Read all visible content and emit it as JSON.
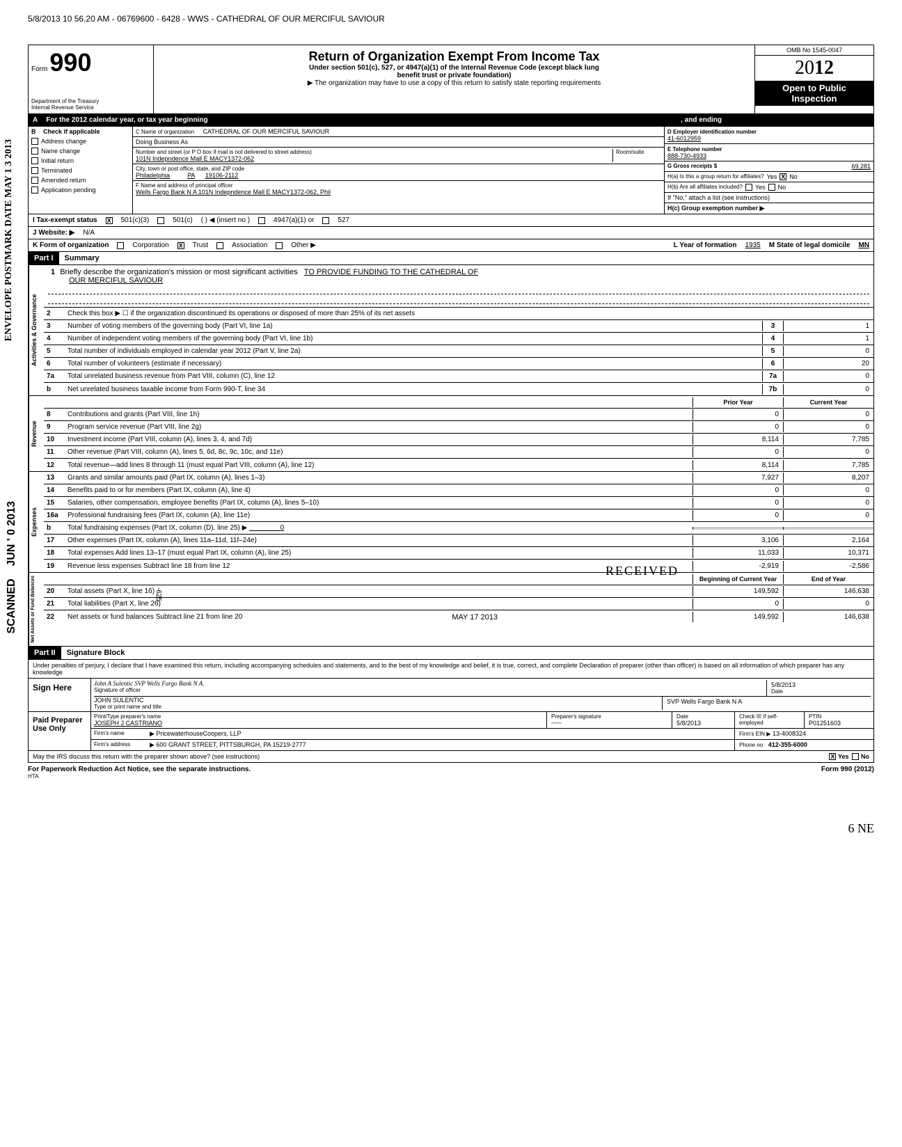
{
  "header": {
    "timestamp_line": "5/8/2013 10 56.20 AM - 06769600 - 6428 - WWS - CATHEDRAL OF OUR MERCIFUL SAVIOUR"
  },
  "form": {
    "form_label": "Form",
    "form_number": "990",
    "dept1": "Department of the Treasury",
    "dept2": "Internal Revenue Service",
    "title": "Return of Organization Exempt From Income Tax",
    "subtitle1": "Under section 501(c), 527, or 4947(a)(1) of the Internal Revenue Code (except black lung",
    "subtitle2": "benefit trust or private foundation)",
    "subtitle3": "▶ The organization may have to use a copy of this return to satisfy state reporting requirements",
    "omb": "OMB No 1545-0047",
    "year": "2012",
    "open": "Open to Public",
    "inspection": "Inspection"
  },
  "row_a": "For the 2012 calendar year, or tax year beginning",
  "row_a_end": ", and ending",
  "col_b": {
    "header": "Check if applicable",
    "items": [
      "Address change",
      "Name change",
      "Initial return",
      "Terminated",
      "Amended return",
      "Application pending"
    ]
  },
  "col_c": {
    "name_label": "C  Name of organization",
    "name": "CATHEDRAL OF OUR MERCIFUL SAVIOUR",
    "dba_label": "Doing Business As",
    "addr_label": "Number and street (or P O  box if mail is not delivered to street address)",
    "room_label": "Room/suite",
    "addr": "101N Indepndence Mall E MACY1372-062",
    "city_label": "City, town or post office, state, and ZIP code",
    "city": "Philadelphia",
    "state": "PA",
    "zip": "19106-2112",
    "f_label": "F  Name and address of principal officer",
    "f_value": "Wells Fargo Bank N A  101N Indepndence Mall E MACY1372-062, Phil"
  },
  "col_d": {
    "d_label": "D  Employer identification number",
    "d_value": "41-6012959",
    "e_label": "E  Telephone number",
    "e_value": "888-730-4933",
    "g_label": "G  Gross receipts $",
    "g_value": "69,281",
    "ha_label": "H(a) Is this a group return for affiliates?",
    "ha_yes": "Yes",
    "ha_no": "No",
    "hb_label": "H(b) Are all affiliates included?",
    "hb_note": "If \"No,\" attach a list  (see instructions)",
    "hc_label": "H(c) Group exemption number ▶"
  },
  "row_i": {
    "label": "I    Tax-exempt status",
    "opt1": "501(c)(3)",
    "opt2": "501(c)",
    "opt2_paren": "(          )  ◀ (insert no )",
    "opt3": "4947(a)(1) or",
    "opt4": "527"
  },
  "row_j": {
    "label": "J   Website: ▶",
    "value": "N/A"
  },
  "row_k": {
    "label": "K  Form of organization",
    "opts": [
      "Corporation",
      "Trust",
      "Association",
      "Other ▶"
    ],
    "l_label": "L Year of formation",
    "l_value": "1935",
    "m_label": "M State of legal domicile",
    "m_value": "MN"
  },
  "part1": {
    "header": "Part I",
    "title": "Summary"
  },
  "governance": {
    "label": "Activities & Governance",
    "line1_desc": "Briefly describe the organization's mission or most significant activities",
    "line1_val": "TO PROVIDE FUNDING TO THE CATHEDRAL OF",
    "line1_val2": "OUR MERCIFUL SAVIOUR",
    "line2_desc": "Check this box  ▶ ☐  if the organization discontinued its operations or disposed of more than 25% of its net assets",
    "lines": [
      {
        "n": "3",
        "desc": "Number of voting members of the governing body (Part VI, line 1a)",
        "box": "3",
        "val": "1"
      },
      {
        "n": "4",
        "desc": "Number of independent voting members of the governing body (Part VI, line 1b)",
        "box": "4",
        "val": "1"
      },
      {
        "n": "5",
        "desc": "Total number of individuals employed in calendar year 2012 (Part V, line 2a)",
        "box": "5",
        "val": "0"
      },
      {
        "n": "6",
        "desc": "Total number of volunteers (estimate if necessary)",
        "box": "6",
        "val": "20"
      },
      {
        "n": "7a",
        "desc": "Total unrelated business revenue from Part VIII, column (C), line 12",
        "box": "7a",
        "val": "0"
      },
      {
        "n": "b",
        "desc": "Net unrelated business taxable income from Form 990-T, line 34",
        "box": "7b",
        "val": "0"
      }
    ]
  },
  "revenue": {
    "label": "Revenue",
    "col1": "Prior Year",
    "col2": "Current Year",
    "lines": [
      {
        "n": "8",
        "desc": "Contributions and grants (Part VIII, line 1h)",
        "v1": "0",
        "v2": "0"
      },
      {
        "n": "9",
        "desc": "Program service revenue (Part VIII, line 2g)",
        "v1": "0",
        "v2": "0"
      },
      {
        "n": "10",
        "desc": "Investment income (Part VIII, column (A), lines 3, 4, and 7d)",
        "v1": "8,114",
        "v2": "7,785"
      },
      {
        "n": "11",
        "desc": "Other revenue (Part VIII, column (A), lines 5, 6d, 8c, 9c, 10c, and 11e)",
        "v1": "0",
        "v2": "0"
      },
      {
        "n": "12",
        "desc": "Total revenue—add lines 8 through 11 (must equal Part VIII, column (A), line 12)",
        "v1": "8,114",
        "v2": "7,785"
      }
    ]
  },
  "expenses": {
    "label": "Expenses",
    "lines": [
      {
        "n": "13",
        "desc": "Grants and similar amounts paid (Part IX, column (A), lines 1–3)",
        "v1": "7,927",
        "v2": "8,207"
      },
      {
        "n": "14",
        "desc": "Benefits paid to or for members (Part IX, column (A), line 4)",
        "v1": "0",
        "v2": "0"
      },
      {
        "n": "15",
        "desc": "Salaries, other compensation, employee benefits (Part IX, column (A), lines 5–10)",
        "v1": "0",
        "v2": "0"
      },
      {
        "n": "16a",
        "desc": "Professional fundraising fees (Part IX, column (A), line 11e)",
        "v1": "0",
        "v2": "0"
      },
      {
        "n": "b",
        "desc": "Total fundraising expenses (Part IX, column (D), line 25) ▶",
        "v1": "",
        "v2": ""
      },
      {
        "n": "17",
        "desc": "Other expenses (Part IX, column (A), lines 11a–11d, 11f–24e)",
        "v1": "3,106",
        "v2": "2,164"
      },
      {
        "n": "18",
        "desc": "Total expenses  Add lines 13–17 (must equal Part IX, column (A), line 25)",
        "v1": "11,033",
        "v2": "10,371"
      },
      {
        "n": "19",
        "desc": "Revenue less expenses  Subtract line 18 from line 12",
        "v1": "-2,919",
        "v2": "-2,586"
      }
    ],
    "line_b_zero": "0"
  },
  "netassets": {
    "label": "Net Assets or Fund Balances",
    "col1": "Beginning of Current Year",
    "col2": "End of Year",
    "lines": [
      {
        "n": "20",
        "desc": "Total assets (Part X, line 16)",
        "v1": "149,592",
        "v2": "146,638"
      },
      {
        "n": "21",
        "desc": "Total liabilities (Part X, line 26)",
        "v1": "0",
        "v2": "0"
      },
      {
        "n": "22",
        "desc": "Net assets or fund balances  Subtract line 21 from line 20",
        "v1": "149,592",
        "v2": "146,638"
      }
    ]
  },
  "received_stamp": "RECEIVED",
  "received_date": "MAY 17 2013",
  "received_num": "-625",
  "part2": {
    "header": "Part II",
    "title": "Signature Block"
  },
  "perjury": "Under penalties of perjury, I declare that I have examined this return, including accompanying schedules and statements, and to the best of my knowledge and belief, it is true, correct, and complete  Declaration of preparer (other than officer) is based on all information of which preparer has any knowledge",
  "sign": {
    "label": "Sign Here",
    "sig_script": "John A Sulentic SVP Wells Fargo Bank N A.",
    "sig_label": "Signature of officer",
    "date": "5/8/2013",
    "date_label": "Date",
    "name": "JOHN SULENTIC",
    "name_label": "Type or print name and title",
    "title": "SVP Wells Fargo Bank N A"
  },
  "paid": {
    "label": "Paid Preparer Use Only",
    "col_name": "Print/Type preparer's name",
    "col_sig": "Preparer's signature",
    "col_date": "Date",
    "col_check": "Check ☒ if self-employed",
    "col_ptin": "PTIN",
    "name": "JOSEPH J  CASTRIANO",
    "date": "5/8/2013",
    "ptin": "P01251603",
    "firm_label": "Firm's name",
    "firm": "▶ PricewaterhouseCoopers, LLP",
    "ein_label": "Firm's EIN ▶",
    "ein": "13-4008324",
    "addr_label": "Firm's address",
    "addr": "▶ 600 GRANT STREET, PITTSBURGH, PA 15219-2777",
    "phone_label": "Phone no",
    "phone": "412-355-6000"
  },
  "irs_discuss": {
    "text": "May the IRS discuss this return with the preparer shown above? (see instructions)",
    "yes": "Yes",
    "no": "No"
  },
  "footer": {
    "left": "For Paperwork Reduction Act Notice, see the separate instructions.",
    "hta": "HTA",
    "right": "Form 990 (2012)"
  },
  "margin": {
    "postmark": "POSTMARK DATE MAY 1 3 2013",
    "envelope": "ENVELOPE",
    "jun": "JUN ' 0 2013",
    "scanned": "SCANNED"
  },
  "page_num": "6 NE",
  "checkbox_b": "B"
}
